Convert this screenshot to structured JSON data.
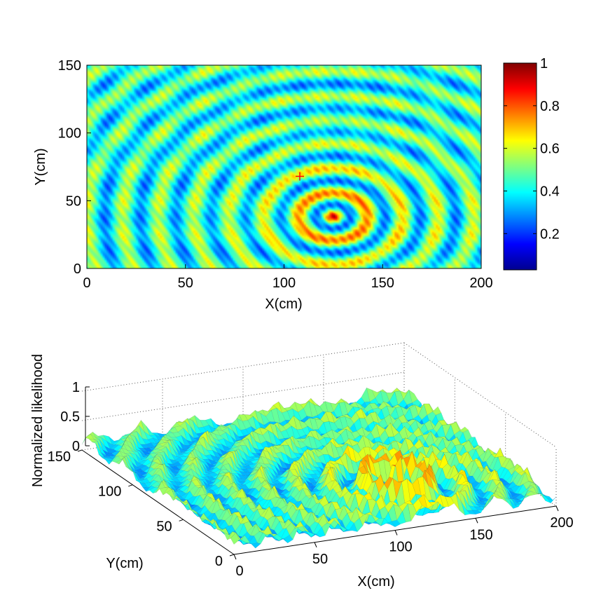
{
  "chart_data": [
    {
      "type": "heatmap",
      "xlabel": "X(cm)",
      "ylabel": "Y(cm)",
      "xlim": [
        0,
        200
      ],
      "ylim": [
        0,
        150
      ],
      "xticks": [
        "0",
        "50",
        "100",
        "150",
        "200"
      ],
      "yticks": [
        "0",
        "50",
        "100",
        "150"
      ],
      "colorbar": {
        "colormap": "jet",
        "range": [
          0.03,
          1
        ],
        "ticks": [
          "0.2",
          "0.4",
          "0.6",
          "0.8",
          "1"
        ]
      },
      "pattern": {
        "peak": {
          "x": 125,
          "y": 38,
          "value": 1.0
        },
        "secondary_peaks": [
          {
            "x": 125,
            "y": 20,
            "value": 0.85
          },
          {
            "x": 125,
            "y": 56,
            "value": 0.7
          }
        ],
        "marker": {
          "x": 108,
          "y": 68,
          "symbol": "+",
          "color": "#ff0000"
        }
      }
    },
    {
      "type": "surface",
      "xlabel": "X(cm)",
      "ylabel": "Y(cm)",
      "zlabel": "Normalized likelihood",
      "xlim": [
        0,
        200
      ],
      "ylim": [
        0,
        150
      ],
      "zlim": [
        0,
        1
      ],
      "xticks": [
        "0",
        "50",
        "100",
        "150",
        "200"
      ],
      "yticks": [
        "0",
        "50",
        "100",
        "150"
      ],
      "zticks": [
        "0",
        "0.5",
        "1"
      ],
      "colormap": "jet",
      "peak": {
        "x": 125,
        "y": 38,
        "value": 1.0
      }
    }
  ]
}
